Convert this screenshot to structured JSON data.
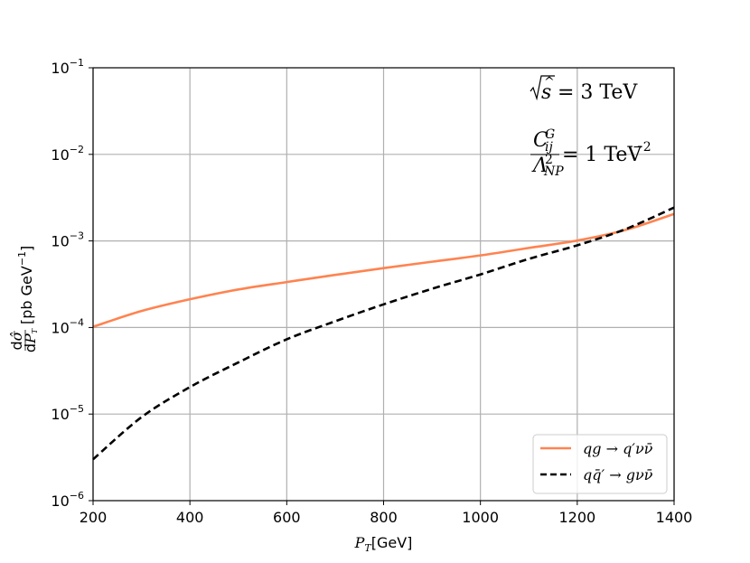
{
  "chart_data": {
    "type": "line",
    "xlabel": "P_T[GeV]",
    "ylabel": "dσ̂/dP_T [pb GeV⁻¹]",
    "xlim": [
      200,
      1400
    ],
    "ylim": [
      1e-06,
      0.1
    ],
    "yscale": "log",
    "grid": true,
    "legend_position": "bottom-right",
    "x_ticks": [
      "200",
      "400",
      "600",
      "800",
      "1000",
      "1200",
      "1400"
    ],
    "y_ticks": [
      {
        "base": "10",
        "exp": "−6"
      },
      {
        "base": "10",
        "exp": "−5"
      },
      {
        "base": "10",
        "exp": "−4"
      },
      {
        "base": "10",
        "exp": "−3"
      },
      {
        "base": "10",
        "exp": "−2"
      },
      {
        "base": "10",
        "exp": "−1"
      }
    ],
    "annotations": {
      "energy": "√ŝ = 3 TeV",
      "coupling": "C_ij^G / Λ_NP² = 1 TeV⁻²"
    },
    "series": [
      {
        "name": "qg → q′νν̄",
        "color": "#ff8350",
        "style": "solid",
        "x": [
          200,
          300,
          400,
          500,
          600,
          700,
          800,
          900,
          1000,
          1100,
          1200,
          1300,
          1400
        ],
        "y": [
          0.000102,
          0.000155,
          0.000212,
          0.000275,
          0.000335,
          0.000405,
          0.000485,
          0.000575,
          0.00068,
          0.00083,
          0.00101,
          0.00134,
          0.00205
        ]
      },
      {
        "name": "qq̄′ → gνν̄",
        "color": "#000000",
        "style": "dashed",
        "x": [
          200,
          300,
          400,
          500,
          600,
          700,
          800,
          900,
          1000,
          1100,
          1200,
          1300,
          1400
        ],
        "y": [
          3e-06,
          9.2e-06,
          2.05e-05,
          3.95e-05,
          7.3e-05,
          0.000118,
          0.000185,
          0.00028,
          0.00041,
          0.00062,
          0.00089,
          0.00137,
          0.00243
        ]
      }
    ]
  }
}
